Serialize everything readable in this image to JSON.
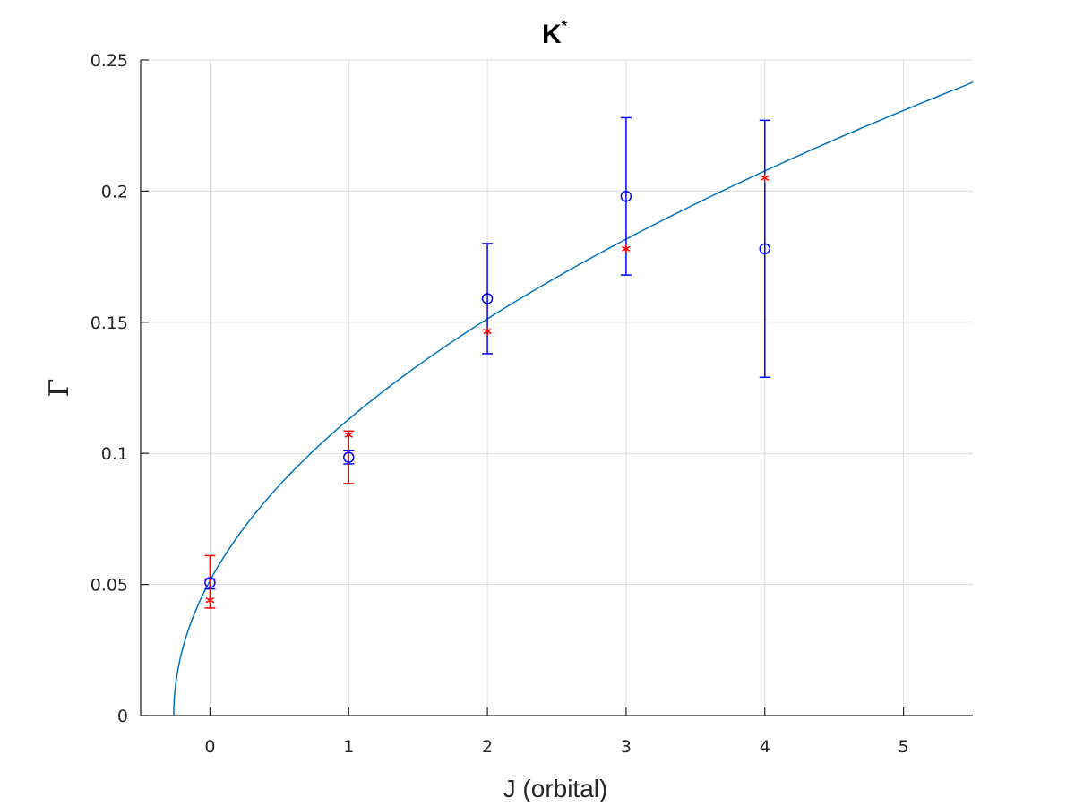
{
  "chart_data": {
    "type": "scatter",
    "title": "K",
    "title_superscript": "*",
    "xlabel": "J (orbital)",
    "ylabel": "Γ",
    "xlim": [
      -0.5,
      5.5
    ],
    "ylim": [
      0,
      0.25
    ],
    "xticks": [
      0,
      1,
      2,
      3,
      4,
      5
    ],
    "xtick_labels": [
      "0",
      "1",
      "2",
      "3",
      "4",
      "5"
    ],
    "yticks": [
      0,
      0.05,
      0.1,
      0.15,
      0.2,
      0.25
    ],
    "ytick_labels": [
      "0",
      "0.05",
      "0.1",
      "0.15",
      "0.2",
      "0.25"
    ],
    "grid": true,
    "series": [
      {
        "marker": "circle",
        "color": "#0000ff",
        "points": [
          {
            "x": 0,
            "y": 0.0507,
            "err_low": 0.0024,
            "err_high": 0.0014
          },
          {
            "x": 1,
            "y": 0.0985,
            "err_low": 0.0025,
            "err_high": 0.0025
          },
          {
            "x": 2,
            "y": 0.159,
            "err_low": 0.021,
            "err_high": 0.021
          },
          {
            "x": 3,
            "y": 0.198,
            "err_low": 0.03,
            "err_high": 0.03
          },
          {
            "x": 4,
            "y": 0.178,
            "err_low": 0.049,
            "err_high": 0.049
          }
        ]
      },
      {
        "marker": "asterisk",
        "color": "#ff0000",
        "points": [
          {
            "x": 0,
            "y": 0.044,
            "err_low": 0.003,
            "err_high": 0.017
          },
          {
            "x": 1,
            "y": 0.107,
            "err_low": 0.0185,
            "err_high": 0.0015
          },
          {
            "x": 2,
            "y": 0.1465,
            "err_low": 0,
            "err_high": 0
          },
          {
            "x": 3,
            "y": 0.178,
            "err_low": 0,
            "err_high": 0
          },
          {
            "x": 4,
            "y": 0.205,
            "err_low": 0,
            "err_high": 0
          }
        ]
      },
      {
        "type": "line",
        "color": "#0072bd",
        "curve": "a*sqrt(x-x0)",
        "params": {
          "a": 0.1006,
          "x0": -0.2615
        },
        "x_range": [
          -0.2615,
          5.5
        ]
      }
    ]
  }
}
